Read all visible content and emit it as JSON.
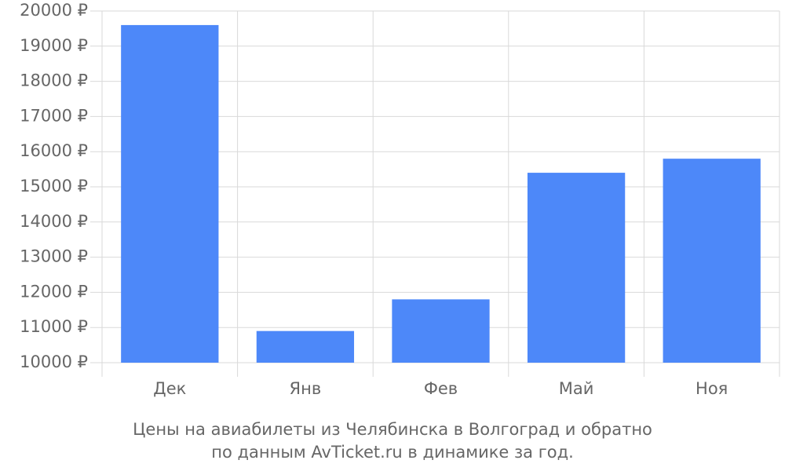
{
  "chart_data": {
    "type": "bar",
    "title": "Цены на авиабилеты из Челябинска в Волгоград и обратно",
    "subtitle": "по данным AvTicket.ru в динамике за год.",
    "categories": [
      "Дек",
      "Янв",
      "Фев",
      "Май",
      "Ноя"
    ],
    "values": [
      19600,
      10900,
      11800,
      15400,
      15800
    ],
    "color": "#4d88f9",
    "ylim": [
      10000,
      20000
    ],
    "yticks": [
      {
        "value": 10000,
        "label": "10000 ₽"
      },
      {
        "value": 11000,
        "label": "11000 ₽"
      },
      {
        "value": 12000,
        "label": "12000 ₽"
      },
      {
        "value": 13000,
        "label": "13000 ₽"
      },
      {
        "value": 14000,
        "label": "14000 ₽"
      },
      {
        "value": 15000,
        "label": "15000 ₽"
      },
      {
        "value": 16000,
        "label": "16000 ₽"
      },
      {
        "value": 17000,
        "label": "17000 ₽"
      },
      {
        "value": 18000,
        "label": "18000 ₽"
      },
      {
        "value": 19000,
        "label": "19000 ₽"
      },
      {
        "value": 20000,
        "label": "20000 ₽"
      }
    ],
    "grid": true
  }
}
